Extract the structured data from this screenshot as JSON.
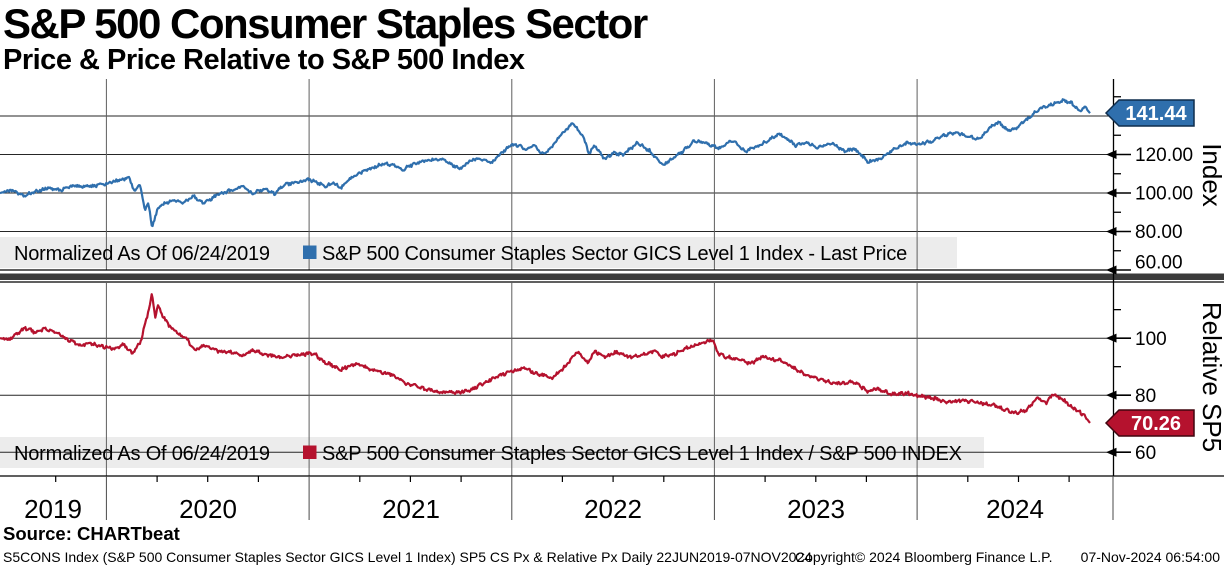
{
  "header": {
    "title": "S&P 500 Consumer Staples Sector",
    "subtitle": "Price & Price Relative to S&P 500 Index"
  },
  "source_line": "Source: CHARTbeat",
  "footer": {
    "left": "S5CONS Index (S&P 500 Consumer Staples Sector GICS Level 1 Index) SP5 CS Px & Relative Px  Daily 22JUN2019-07NOV2024",
    "center": "Copyright© 2024 Bloomberg Finance L.P.",
    "right": "07-Nov-2024 06:54:00"
  },
  "x_axis": {
    "years": [
      "2019",
      "2020",
      "2021",
      "2022",
      "2023",
      "2024"
    ],
    "range_decimal_years": [
      2019.475,
      2024.853
    ],
    "date_range": "22JUN2019-07NOV2024"
  },
  "chart_data": [
    {
      "type": "line",
      "panel": "top",
      "name": "S&P 500 Consumer Staples Sector GICS Level 1 Index - Last Price",
      "legend_prefix": "Normalized As Of 06/24/2019",
      "y_axis_title": "Index",
      "last_price": 141.44,
      "last_price_label": "141.44",
      "color": "#2f6fad",
      "hgrid_values": [
        140,
        120,
        100,
        80
      ],
      "ytick_major": [
        120,
        100,
        80,
        60
      ],
      "ytick_labels": [
        "120.00",
        "100.00",
        "80.00",
        "60.00"
      ],
      "ytick_minor": [
        150,
        130,
        110,
        90,
        70
      ],
      "ylim_displayed": [
        60,
        157
      ],
      "points": [
        [
          2019.475,
          100
        ],
        [
          2019.53,
          101.5
        ],
        [
          2019.59,
          98.6
        ],
        [
          2019.65,
          100.8
        ],
        [
          2019.71,
          102.5
        ],
        [
          2019.77,
          101.4
        ],
        [
          2019.84,
          103.6
        ],
        [
          2019.92,
          103.4
        ],
        [
          2019.99,
          104.6
        ],
        [
          2020.05,
          106.4
        ],
        [
          2020.11,
          107.8
        ],
        [
          2020.14,
          101
        ],
        [
          2020.165,
          105
        ],
        [
          2020.19,
          91
        ],
        [
          2020.205,
          95.5
        ],
        [
          2020.225,
          82.5
        ],
        [
          2020.25,
          90.5
        ],
        [
          2020.27,
          93.8
        ],
        [
          2020.33,
          96.5
        ],
        [
          2020.37,
          94.6
        ],
        [
          2020.43,
          98.3
        ],
        [
          2020.48,
          94.8
        ],
        [
          2020.55,
          99
        ],
        [
          2020.61,
          101.3
        ],
        [
          2020.67,
          103.4
        ],
        [
          2020.72,
          99.6
        ],
        [
          2020.78,
          102.4
        ],
        [
          2020.83,
          99.7
        ],
        [
          2020.875,
          104.4
        ],
        [
          2020.94,
          105.6
        ],
        [
          2021.0,
          106.9
        ],
        [
          2021.04,
          105.4
        ],
        [
          2021.08,
          103.6
        ],
        [
          2021.12,
          105.1
        ],
        [
          2021.16,
          102.8
        ],
        [
          2021.2,
          107.3
        ],
        [
          2021.26,
          110.8
        ],
        [
          2021.32,
          113.4
        ],
        [
          2021.37,
          115.4
        ],
        [
          2021.42,
          114.4
        ],
        [
          2021.46,
          111.8
        ],
        [
          2021.5,
          114.3
        ],
        [
          2021.55,
          115.9
        ],
        [
          2021.61,
          117.6
        ],
        [
          2021.67,
          117
        ],
        [
          2021.72,
          113.7
        ],
        [
          2021.75,
          112.8
        ],
        [
          2021.8,
          117
        ],
        [
          2021.84,
          118
        ],
        [
          2021.9,
          115.6
        ],
        [
          2021.95,
          120.8
        ],
        [
          2022.0,
          125
        ],
        [
          2022.04,
          124.6
        ],
        [
          2022.07,
          121.9
        ],
        [
          2022.11,
          124.9
        ],
        [
          2022.15,
          120.5
        ],
        [
          2022.19,
          122.9
        ],
        [
          2022.24,
          129.8
        ],
        [
          2022.3,
          136.4
        ],
        [
          2022.35,
          129.8
        ],
        [
          2022.38,
          120.6
        ],
        [
          2022.41,
          124.4
        ],
        [
          2022.46,
          117.5
        ],
        [
          2022.5,
          120.9
        ],
        [
          2022.55,
          119.8
        ],
        [
          2022.62,
          126.2
        ],
        [
          2022.68,
          121.9
        ],
        [
          2022.745,
          114.3
        ],
        [
          2022.78,
          116.9
        ],
        [
          2022.835,
          120.9
        ],
        [
          2022.9,
          126.9
        ],
        [
          2022.95,
          126.4
        ],
        [
          2022.99,
          124.4
        ],
        [
          2023.03,
          123.4
        ],
        [
          2023.09,
          127.4
        ],
        [
          2023.15,
          121.7
        ],
        [
          2023.21,
          123.9
        ],
        [
          2023.28,
          128.4
        ],
        [
          2023.33,
          130.6
        ],
        [
          2023.4,
          124.7
        ],
        [
          2023.45,
          126.4
        ],
        [
          2023.51,
          123.7
        ],
        [
          2023.58,
          126
        ],
        [
          2023.64,
          121.7
        ],
        [
          2023.69,
          122.9
        ],
        [
          2023.76,
          116.1
        ],
        [
          2023.82,
          117.7
        ],
        [
          2023.88,
          122.4
        ],
        [
          2023.95,
          125.9
        ],
        [
          2024.01,
          125.4
        ],
        [
          2024.07,
          127
        ],
        [
          2024.13,
          130
        ],
        [
          2024.19,
          131.4
        ],
        [
          2024.26,
          129.4
        ],
        [
          2024.3,
          127.7
        ],
        [
          2024.36,
          134
        ],
        [
          2024.4,
          136.9
        ],
        [
          2024.45,
          132.5
        ],
        [
          2024.49,
          133.7
        ],
        [
          2024.55,
          138.9
        ],
        [
          2024.6,
          143.4
        ],
        [
          2024.66,
          146
        ],
        [
          2024.72,
          148
        ],
        [
          2024.76,
          147
        ],
        [
          2024.8,
          142.7
        ],
        [
          2024.83,
          144.4
        ],
        [
          2024.853,
          141.44
        ]
      ]
    },
    {
      "type": "line",
      "panel": "bottom",
      "name": "S&P 500 Consumer Staples Sector GICS Level 1 Index / S&P 500 INDEX",
      "legend_prefix": "Normalized As Of 06/24/2019",
      "y_axis_title": "Relative SP5",
      "last_price": 70.26,
      "last_price_label": "70.26",
      "color": "#b5122e",
      "hgrid_values": [
        100,
        80,
        60
      ],
      "ytick_major": [
        100,
        80,
        60
      ],
      "ytick_labels": [
        "100",
        "80",
        "60"
      ],
      "ytick_minor": [
        110,
        90
      ],
      "ylim_displayed": [
        51,
        120
      ],
      "points": [
        [
          2019.475,
          100
        ],
        [
          2019.52,
          99.4
        ],
        [
          2019.6,
          103.6
        ],
        [
          2019.655,
          101.9
        ],
        [
          2019.7,
          103.4
        ],
        [
          2019.75,
          102
        ],
        [
          2019.81,
          99.4
        ],
        [
          2019.87,
          97.5
        ],
        [
          2019.92,
          98.1
        ],
        [
          2019.99,
          97
        ],
        [
          2020.05,
          96.1
        ],
        [
          2020.085,
          98
        ],
        [
          2020.13,
          94.5
        ],
        [
          2020.17,
          99
        ],
        [
          2020.195,
          106
        ],
        [
          2020.215,
          112
        ],
        [
          2020.225,
          115.6
        ],
        [
          2020.24,
          107.5
        ],
        [
          2020.255,
          111.4
        ],
        [
          2020.28,
          107.6
        ],
        [
          2020.31,
          104.4
        ],
        [
          2020.36,
          101.4
        ],
        [
          2020.4,
          99.4
        ],
        [
          2020.435,
          95.7
        ],
        [
          2020.48,
          97.4
        ],
        [
          2020.55,
          95.4
        ],
        [
          2020.61,
          95.1
        ],
        [
          2020.67,
          93.7
        ],
        [
          2020.725,
          96
        ],
        [
          2020.78,
          94.4
        ],
        [
          2020.86,
          93.1
        ],
        [
          2020.92,
          94.1
        ],
        [
          2021.0,
          94.6
        ],
        [
          2021.03,
          94.3
        ],
        [
          2021.08,
          91.4
        ],
        [
          2021.16,
          89.1
        ],
        [
          2021.23,
          91
        ],
        [
          2021.33,
          88.4
        ],
        [
          2021.4,
          87.4
        ],
        [
          2021.48,
          84.1
        ],
        [
          2021.56,
          82.4
        ],
        [
          2021.63,
          81.4
        ],
        [
          2021.71,
          80.7
        ],
        [
          2021.79,
          81.7
        ],
        [
          2021.84,
          83.4
        ],
        [
          2021.92,
          86.4
        ],
        [
          2022.0,
          88.4
        ],
        [
          2022.06,
          89.4
        ],
        [
          2022.13,
          87.4
        ],
        [
          2022.2,
          86.1
        ],
        [
          2022.27,
          90.5
        ],
        [
          2022.32,
          95.4
        ],
        [
          2022.375,
          91.5
        ],
        [
          2022.41,
          95.4
        ],
        [
          2022.46,
          93.4
        ],
        [
          2022.52,
          95.1
        ],
        [
          2022.59,
          93.1
        ],
        [
          2022.65,
          94.4
        ],
        [
          2022.71,
          95.5
        ],
        [
          2022.745,
          93.5
        ],
        [
          2022.8,
          94.4
        ],
        [
          2022.86,
          96.4
        ],
        [
          2022.95,
          98.4
        ],
        [
          2022.99,
          99.7
        ],
        [
          2023.02,
          94.5
        ],
        [
          2023.06,
          93.4
        ],
        [
          2023.12,
          92.4
        ],
        [
          2023.18,
          91.1
        ],
        [
          2023.23,
          93.4
        ],
        [
          2023.33,
          92.1
        ],
        [
          2023.42,
          88.4
        ],
        [
          2023.49,
          86.1
        ],
        [
          2023.57,
          84.5
        ],
        [
          2023.63,
          84.1
        ],
        [
          2023.69,
          84.7
        ],
        [
          2023.76,
          81.1
        ],
        [
          2023.8,
          82.4
        ],
        [
          2023.87,
          80.5
        ],
        [
          2023.95,
          80.7
        ],
        [
          2024.01,
          79.7
        ],
        [
          2024.07,
          79.1
        ],
        [
          2024.15,
          77.5
        ],
        [
          2024.22,
          78.1
        ],
        [
          2024.3,
          77.4
        ],
        [
          2024.38,
          76.4
        ],
        [
          2024.45,
          74.5
        ],
        [
          2024.49,
          73.7
        ],
        [
          2024.54,
          74.9
        ],
        [
          2024.59,
          79
        ],
        [
          2024.64,
          77.4
        ],
        [
          2024.67,
          80.4
        ],
        [
          2024.72,
          78.4
        ],
        [
          2024.76,
          76
        ],
        [
          2024.8,
          74.4
        ],
        [
          2024.83,
          72.4
        ],
        [
          2024.853,
          70.26
        ]
      ]
    }
  ]
}
